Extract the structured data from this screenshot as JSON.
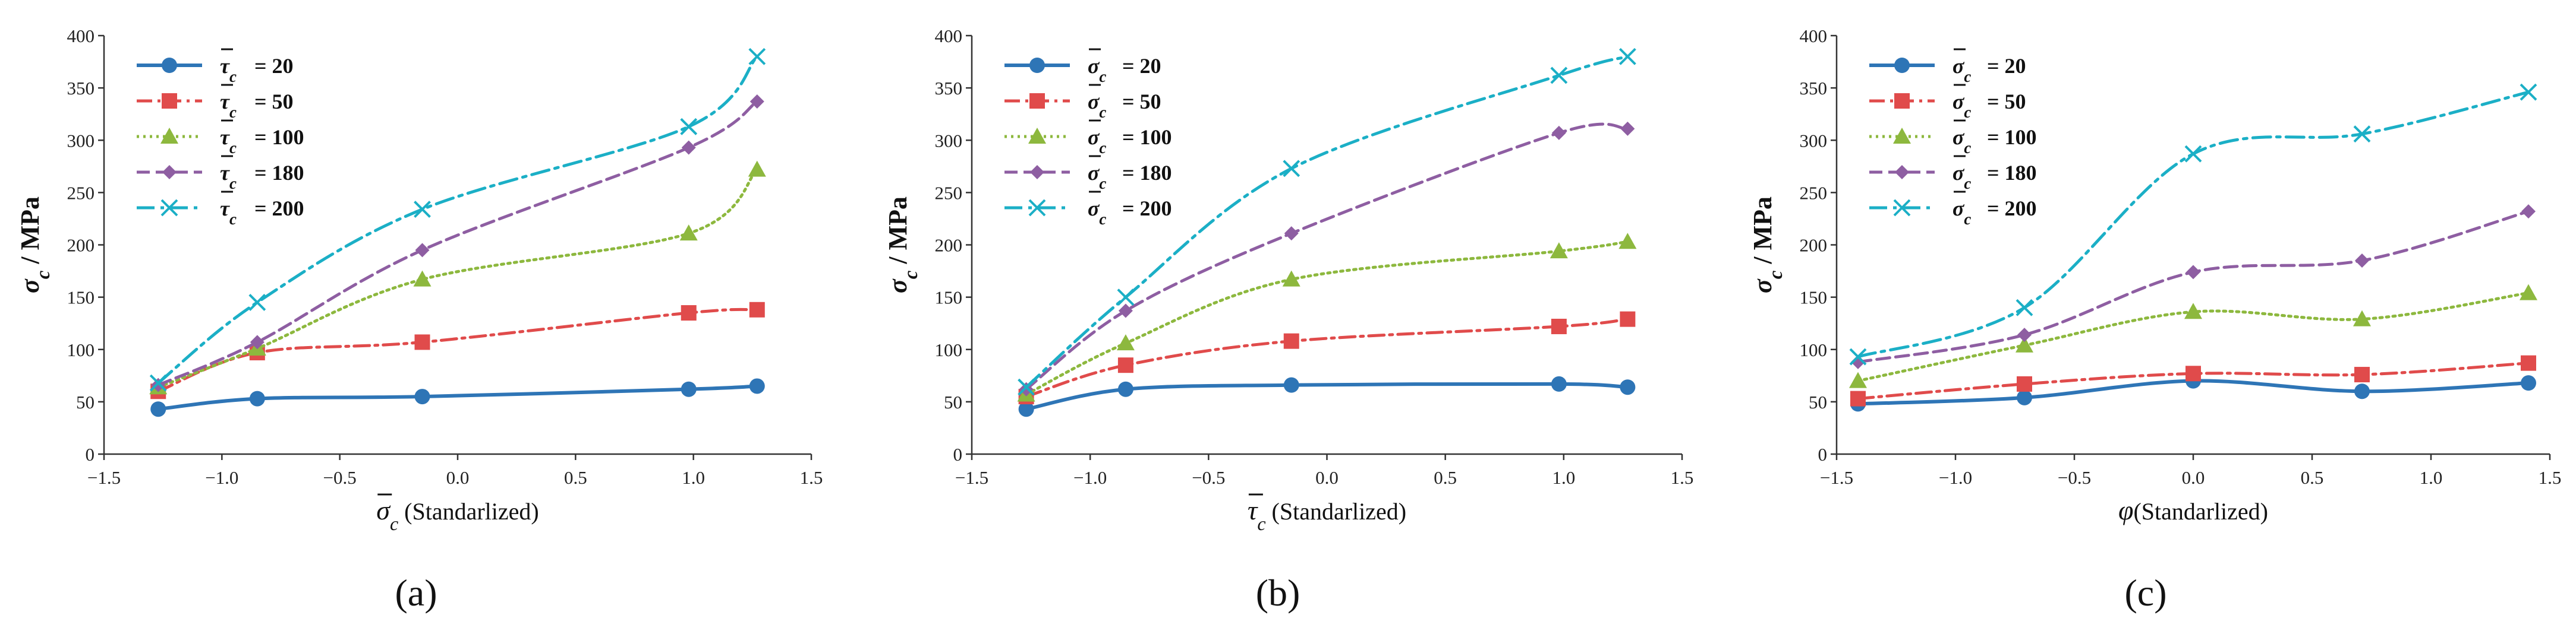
{
  "figure": {
    "charts": [
      {
        "panel_label": "(a)",
        "ylabel_sym": "σ",
        "ylabel_sub": "c",
        "ylabel_unit": " / MPa",
        "xlabel_sym": "σ",
        "xlabel_sub": "c",
        "xlabel_text": " (Standarlized)",
        "legend_sym": "τ",
        "legend_sub": "c"
      },
      {
        "panel_label": "(b)",
        "ylabel_sym": "σ",
        "ylabel_sub": "c",
        "ylabel_unit": " / MPa",
        "xlabel_sym": "τ",
        "xlabel_sub": "c",
        "xlabel_text": " (Standarlized)",
        "legend_sym": "σ",
        "legend_sub": "c"
      },
      {
        "panel_label": "(c)",
        "ylabel_sym": "σ",
        "ylabel_sub": "c",
        "ylabel_unit": " / MPa",
        "xlabel_sym": "φ",
        "xlabel_sub": "",
        "xlabel_text": "(Standarlized)",
        "legend_sym": "σ",
        "legend_sub": "c"
      }
    ]
  },
  "colors": {
    "s20": "#2E75B6",
    "s50": "#E04B4B",
    "s100": "#8DB83E",
    "s180": "#8E5EA2",
    "s200": "#1BAFC6"
  },
  "chart_data": [
    {
      "type": "line",
      "title": "",
      "xlabel": "σ̄c (Standarlized)",
      "ylabel": "σc / MPa",
      "xlim": [
        -1.5,
        1.5
      ],
      "ylim": [
        0,
        400
      ],
      "xticks": [
        "−1.5",
        "−1.0",
        "−0.5",
        "0.0",
        "0.5",
        "1.0",
        "1.5"
      ],
      "yticks": [
        "0",
        "50",
        "100",
        "150",
        "200",
        "250",
        "300",
        "350",
        "400"
      ],
      "x": [
        -1.27,
        -0.85,
        -0.15,
        0.98,
        1.27
      ],
      "legend_position": "top-left",
      "series": [
        {
          "name": "20",
          "value_label": "= 20",
          "marker": "circle",
          "style": "solid",
          "values": [
            43,
            53,
            55,
            62,
            65
          ]
        },
        {
          "name": "50",
          "value_label": "= 50",
          "marker": "square",
          "style": "dashdot",
          "values": [
            60,
            97,
            107,
            135,
            138
          ]
        },
        {
          "name": "100",
          "value_label": "= 100",
          "marker": "triangle",
          "style": "dotted",
          "values": [
            64,
            101,
            167,
            211,
            272
          ]
        },
        {
          "name": "180",
          "value_label": "= 180",
          "marker": "diamond",
          "style": "dashed",
          "values": [
            66,
            107,
            195,
            293,
            337
          ]
        },
        {
          "name": "200",
          "value_label": "= 200",
          "marker": "x",
          "style": "dashdot2",
          "values": [
            68,
            145,
            234,
            313,
            380
          ]
        }
      ]
    },
    {
      "type": "line",
      "title": "",
      "xlabel": "τ̄c (Standarlized)",
      "ylabel": "σc / MPa",
      "xlim": [
        -1.5,
        1.5
      ],
      "ylim": [
        0,
        400
      ],
      "xticks": [
        "−1.5",
        "−1.0",
        "−0.5",
        "0.0",
        "0.5",
        "1.0",
        "1.5"
      ],
      "yticks": [
        "0",
        "50",
        "100",
        "150",
        "200",
        "250",
        "300",
        "350",
        "400"
      ],
      "x": [
        -1.27,
        -0.85,
        -0.15,
        0.98,
        1.27
      ],
      "legend_position": "top-left",
      "series": [
        {
          "name": "20",
          "value_label": "= 20",
          "marker": "circle",
          "style": "solid",
          "values": [
            43,
            62,
            66,
            67,
            64
          ]
        },
        {
          "name": "50",
          "value_label": "= 50",
          "marker": "square",
          "style": "dashdot",
          "values": [
            55,
            85,
            108,
            122,
            129
          ]
        },
        {
          "name": "100",
          "value_label": "= 100",
          "marker": "triangle",
          "style": "dotted",
          "values": [
            57,
            106,
            167,
            194,
            203
          ]
        },
        {
          "name": "180",
          "value_label": "= 180",
          "marker": "diamond",
          "style": "dashed",
          "values": [
            62,
            137,
            211,
            307,
            311
          ]
        },
        {
          "name": "200",
          "value_label": "= 200",
          "marker": "x",
          "style": "dashdot2",
          "values": [
            64,
            150,
            273,
            362,
            380
          ]
        }
      ]
    },
    {
      "type": "line",
      "title": "",
      "xlabel": "φ(Standarlized)",
      "ylabel": "σc / MPa",
      "xlim": [
        -1.5,
        1.5
      ],
      "ylim": [
        0,
        400
      ],
      "xticks": [
        "−1.5",
        "−1.0",
        "−0.5",
        "0.0",
        "0.5",
        "1.0",
        "1.5"
      ],
      "yticks": [
        "0",
        "50",
        "100",
        "150",
        "200",
        "250",
        "300",
        "350",
        "400"
      ],
      "x": [
        -1.41,
        -0.71,
        0.0,
        0.71,
        1.41
      ],
      "legend_position": "top-left",
      "series": [
        {
          "name": "20",
          "value_label": "= 20",
          "marker": "circle",
          "style": "solid",
          "values": [
            48,
            54,
            70,
            60,
            68
          ]
        },
        {
          "name": "50",
          "value_label": "= 50",
          "marker": "square",
          "style": "dashdot",
          "values": [
            53,
            67,
            77,
            76,
            87
          ]
        },
        {
          "name": "100",
          "value_label": "= 100",
          "marker": "triangle",
          "style": "dotted",
          "values": [
            70,
            104,
            136,
            129,
            154
          ]
        },
        {
          "name": "180",
          "value_label": "= 180",
          "marker": "diamond",
          "style": "dashed",
          "values": [
            88,
            114,
            174,
            185,
            232
          ]
        },
        {
          "name": "200",
          "value_label": "= 200",
          "marker": "x",
          "style": "dashdot2",
          "values": [
            93,
            140,
            287,
            306,
            346
          ]
        }
      ]
    }
  ]
}
